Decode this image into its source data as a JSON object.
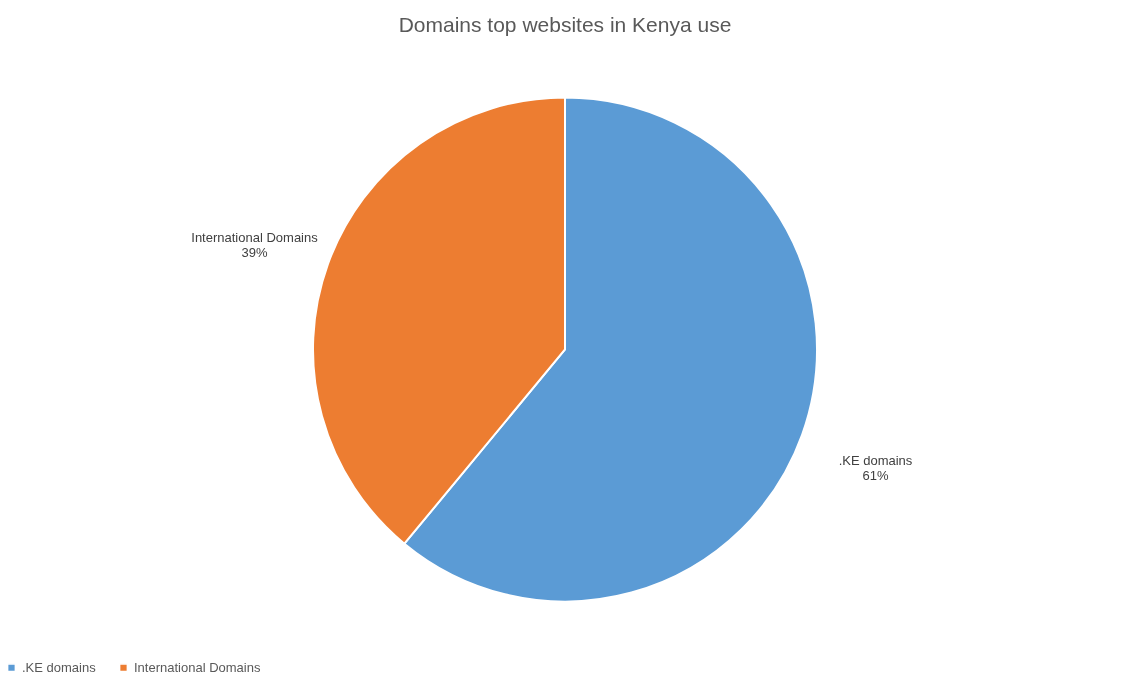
{
  "chart_data": {
    "type": "pie",
    "title": "Domains top websites in Kenya use",
    "categories": [
      ".KE domains",
      "International Domains"
    ],
    "values": [
      61,
      39
    ],
    "colors": [
      "#5b9bd5",
      "#ed7d31"
    ],
    "value_labels": [
      "61%",
      "39%"
    ],
    "legend": "bottom"
  }
}
